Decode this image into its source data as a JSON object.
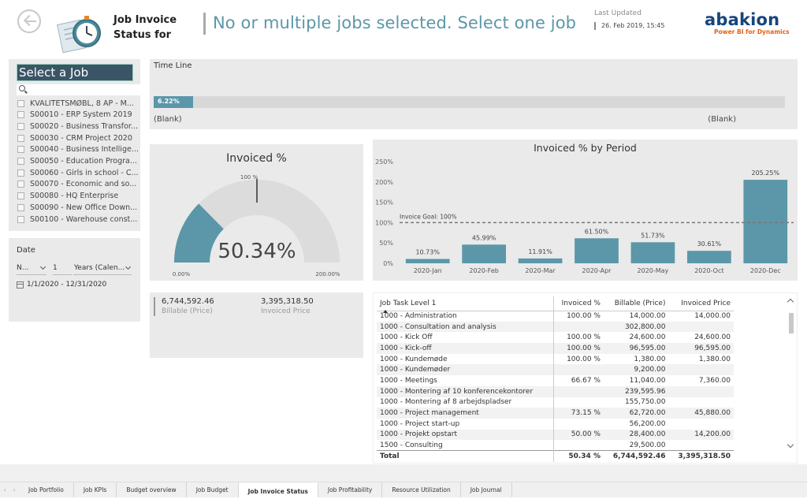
{
  "header": {
    "title": "Job Invoice Status for",
    "status_message": "No or multiple jobs selected. Select one job",
    "last_updated_label": "Last Updated",
    "last_updated_value": "26. Feb 2019, 15:45",
    "logo_name": "abakion",
    "logo_tagline": "Power BI for Dynamics"
  },
  "job_slicer": {
    "title": "Select a Job",
    "items": [
      "KVALITETSMØBL, 8 AP - M...",
      "S00010 - ERP System 2019",
      "S00020 - Business Transfor...",
      "S00030 - CRM Project 2020",
      "S00040 - Business Intellige...",
      "S00050 - Education Progra...",
      "S00060 - Girls in school - C...",
      "S00070 - Economic and so...",
      "S00080 - HQ Enterprise",
      "S00090 - New Office Down...",
      "S00100 - Warehouse const..."
    ]
  },
  "date_slicer": {
    "label": "Date",
    "dropdown1": "N...",
    "number": "1",
    "dropdown2": "Years (Calen...",
    "range": "1/1/2020 - 12/31/2020"
  },
  "timeline": {
    "label": "Time Line",
    "progress_label": "6.22%",
    "progress": 0.0622,
    "left_label": "(Blank)",
    "right_label": "(Blank)"
  },
  "gauge": {
    "title": "Invoiced %",
    "value": "50.34%",
    "value_num": 50.34,
    "min": 0,
    "max": 200,
    "target": 100,
    "min_label": "0.00%",
    "max_label": "200.00%",
    "target_label": "100 %"
  },
  "cards": {
    "billable_value": "6,744,592.46",
    "billable_label": "Billable (Price)",
    "invoiced_value": "3,395,318.50",
    "invoiced_label": "Invoiced Price"
  },
  "chart_data": {
    "type": "bar",
    "title": "Invoiced % by Period",
    "categories": [
      "2020-Jan",
      "2020-Feb",
      "2020-Mar",
      "2020-Apr",
      "2020-May",
      "2020-Oct",
      "2020-Dec"
    ],
    "values": [
      10.73,
      45.99,
      11.91,
      61.5,
      51.73,
      30.61,
      205.25
    ],
    "value_labels": [
      "10.73%",
      "45.99%",
      "11.91%",
      "61.50%",
      "51.73%",
      "30.61%",
      "205.25%"
    ],
    "yticks": [
      "0%",
      "50%",
      "100%",
      "150%",
      "200%",
      "250%"
    ],
    "ylim": [
      0,
      250
    ],
    "goal": 100,
    "goal_label": "Invoice Goal: 100%",
    "bar_color": "#5b97a8"
  },
  "table": {
    "columns": [
      "Job Task Level 1",
      "Invoiced %",
      "Billable (Price)",
      "Invoiced Price"
    ],
    "rows": [
      [
        "1000 - Administration",
        "100.00 %",
        "14,000.00",
        "14,000.00"
      ],
      [
        "1000 - Consultation and analysis",
        "",
        "302,800.00",
        ""
      ],
      [
        "1000 - Kick Off",
        "100.00 %",
        "24,600.00",
        "24,600.00"
      ],
      [
        "1000 - Kick-off",
        "100.00 %",
        "96,595.00",
        "96,595.00"
      ],
      [
        "1000 - Kundemøde",
        "100.00 %",
        "1,380.00",
        "1,380.00"
      ],
      [
        "1000 - Kundemøder",
        "",
        "9,200.00",
        ""
      ],
      [
        "1000 - Meetings",
        "66.67 %",
        "11,040.00",
        "7,360.00"
      ],
      [
        "1000 - Montering af 10 konferencekontorer",
        "",
        "239,595.96",
        ""
      ],
      [
        "1000 - Montering af 8 arbejdspladser",
        "",
        "155,750.00",
        ""
      ],
      [
        "1000 - Project management",
        "73.15 %",
        "62,720.00",
        "45,880.00"
      ],
      [
        "1000 - Project start-up",
        "",
        "56,200.00",
        ""
      ],
      [
        "1000 - Projekt opstart",
        "50.00 %",
        "28,400.00",
        "14,200.00"
      ],
      [
        "1500 - Consulting",
        "",
        "29,500.00",
        ""
      ]
    ],
    "total": [
      "Total",
      "50.34 %",
      "6,744,592.46",
      "3,395,318.50"
    ]
  },
  "tabs": [
    "Job Portfolio",
    "Job KPIs",
    "Budget overview",
    "Job Budget",
    "Job Invoice Status",
    "Job Profitability",
    "Resource Utilization",
    "Job Journal"
  ],
  "active_tab": "Job Invoice Status",
  "colors": {
    "accent": "#5b97a8",
    "panel": "#eaeaea",
    "logo": "#16457b",
    "logo_tagline": "#e85e12"
  }
}
